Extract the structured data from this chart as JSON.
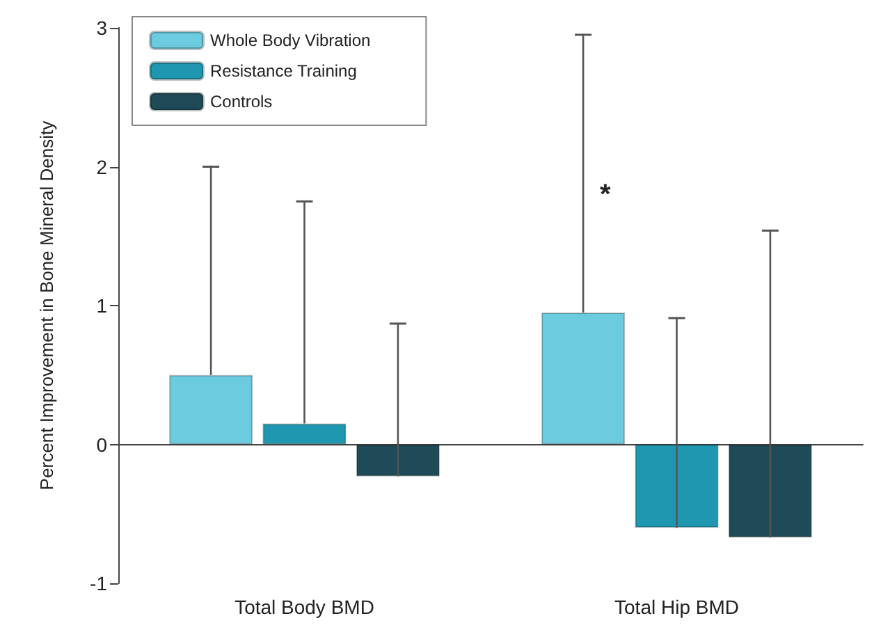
{
  "chart_data": {
    "type": "bar",
    "ylabel": "Percent Improvement in Bone Mineral Density",
    "categories": [
      "Total Body BMD",
      "Total Hip BMD"
    ],
    "series": [
      {
        "name": "Whole Body Vibration",
        "color": "#6ccbdf",
        "values": [
          0.5,
          0.95
        ],
        "errors": [
          [
            0.5,
            2.0
          ],
          [
            0.95,
            2.95
          ]
        ]
      },
      {
        "name": "Resistance Training",
        "color": "#1f97b0",
        "values": [
          0.15,
          -0.6
        ],
        "errors": [
          [
            0.15,
            1.75
          ],
          [
            -0.6,
            0.91
          ]
        ]
      },
      {
        "name": "Controls",
        "color": "#1f4a57",
        "values": [
          -0.23,
          -0.67
        ],
        "errors": [
          [
            -0.23,
            0.87
          ],
          [
            -0.67,
            1.54
          ]
        ]
      }
    ],
    "ylim": [
      -1,
      3
    ],
    "yticks": [
      -1,
      0,
      1,
      2,
      3
    ],
    "legend": "top left",
    "annotations": [
      "*"
    ]
  }
}
